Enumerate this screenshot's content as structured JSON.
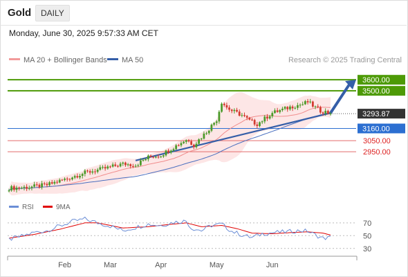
{
  "header": {
    "title": "Gold",
    "tab_label": "DAILY"
  },
  "datetime": "Monday, June 30, 2025 9:57:33 AM CET",
  "legend": {
    "ma20": "MA 20 + Bollinger Bands",
    "ma50": "MA 50",
    "copyright": "Research © 2025 Trading Central"
  },
  "rsi_legend": {
    "rsi": "RSI",
    "ma": "9MA"
  },
  "colors": {
    "resistance": "#4d9a06",
    "support": "#2c6fd1",
    "minor": "#e36b6b",
    "trend": "#345ea8",
    "current": "#333333"
  },
  "chart_data": {
    "type": "candlestick",
    "x_ticks": [
      "Feb",
      "Mar",
      "Apr",
      "May",
      "Jun"
    ],
    "y_ylim": [
      2550,
      3720
    ],
    "current_price": {
      "label": "3293.87",
      "value": 3293.87
    },
    "levels": [
      {
        "label": "3600.00",
        "value": 3600,
        "kind": "resistance"
      },
      {
        "label": "3500.00",
        "value": 3500,
        "kind": "resistance"
      },
      {
        "label": "3160.00",
        "value": 3160,
        "kind": "support"
      },
      {
        "label": "3050.00",
        "value": 3050,
        "kind": "minor"
      },
      {
        "label": "2950.00",
        "value": 2950,
        "kind": "minor"
      }
    ],
    "anchors": [
      [
        0,
        2620
      ],
      [
        8,
        2630
      ],
      [
        15,
        2650
      ],
      [
        22,
        2700
      ],
      [
        30,
        2760
      ],
      [
        38,
        2800
      ],
      [
        45,
        2840
      ],
      [
        50,
        2830
      ],
      [
        55,
        2900
      ],
      [
        60,
        2920
      ],
      [
        65,
        2990
      ],
      [
        70,
        3060
      ],
      [
        73,
        3010
      ],
      [
        78,
        3130
      ],
      [
        82,
        3240
      ],
      [
        84,
        3400
      ],
      [
        86,
        3350
      ],
      [
        88,
        3320
      ],
      [
        90,
        3300
      ],
      [
        92,
        3280
      ],
      [
        95,
        3230
      ],
      [
        98,
        3200
      ],
      [
        101,
        3250
      ],
      [
        104,
        3300
      ],
      [
        108,
        3330
      ],
      [
        112,
        3360
      ],
      [
        116,
        3380
      ],
      [
        118,
        3400
      ],
      [
        121,
        3350
      ],
      [
        123,
        3320
      ],
      [
        125,
        3310
      ],
      [
        127,
        3290
      ]
    ],
    "rsi": {
      "levels": [
        70,
        50,
        30
      ],
      "ylim": [
        20,
        85
      ],
      "rsi_anchors": [
        [
          0,
          44
        ],
        [
          5,
          49
        ],
        [
          10,
          55
        ],
        [
          15,
          58
        ],
        [
          20,
          65
        ],
        [
          25,
          72
        ],
        [
          30,
          76
        ],
        [
          35,
          70
        ],
        [
          40,
          65
        ],
        [
          45,
          58
        ],
        [
          50,
          63
        ],
        [
          55,
          68
        ],
        [
          60,
          66
        ],
        [
          65,
          71
        ],
        [
          70,
          73
        ],
        [
          72,
          62
        ],
        [
          76,
          58
        ],
        [
          80,
          66
        ],
        [
          84,
          68
        ],
        [
          88,
          57
        ],
        [
          92,
          51
        ],
        [
          96,
          47
        ],
        [
          100,
          53
        ],
        [
          105,
          55
        ],
        [
          110,
          56
        ],
        [
          115,
          58
        ],
        [
          118,
          57
        ],
        [
          121,
          51
        ],
        [
          124,
          46
        ],
        [
          127,
          47
        ]
      ],
      "ma_anchors": [
        [
          0,
          46
        ],
        [
          10,
          52
        ],
        [
          20,
          60
        ],
        [
          30,
          70
        ],
        [
          35,
          70
        ],
        [
          45,
          62
        ],
        [
          55,
          64
        ],
        [
          62,
          67
        ],
        [
          70,
          70
        ],
        [
          76,
          64
        ],
        [
          84,
          66
        ],
        [
          90,
          61
        ],
        [
          96,
          54
        ],
        [
          104,
          53
        ],
        [
          112,
          55
        ],
        [
          118,
          56
        ],
        [
          124,
          54
        ],
        [
          127,
          51
        ]
      ]
    }
  }
}
